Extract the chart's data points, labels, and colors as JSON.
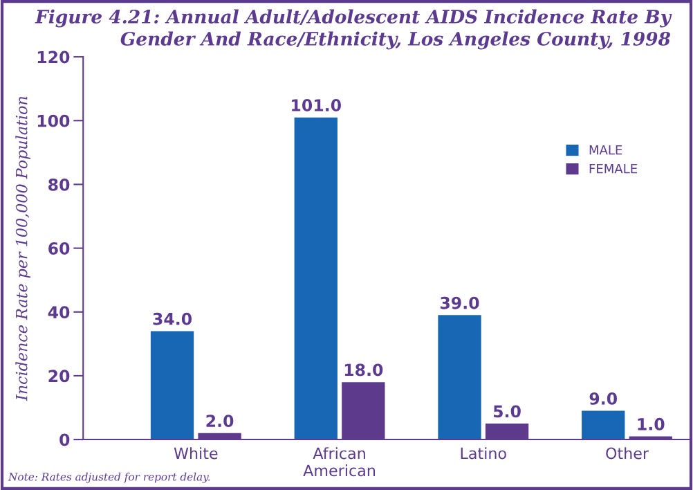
{
  "chart_data": {
    "type": "bar",
    "title": "Figure 4.21: Annual Adult/Adolescent AIDS Incidence Rate By\nGender And Race/Ethnicity, Los Angeles County, 1998",
    "ylabel": "Incidence Rate per 100,000 Population",
    "categories": [
      "White",
      "African\nAmerican",
      "Latino",
      "Other"
    ],
    "series": [
      {
        "name": "MALE",
        "color": "#1767b4",
        "values": [
          34.0,
          101.0,
          39.0,
          9.0
        ],
        "value_labels": [
          "34.0",
          "101.0",
          "39.0",
          "9.0"
        ]
      },
      {
        "name": "FEMALE",
        "color": "#5e3a8c",
        "values": [
          2.0,
          18.0,
          5.0,
          1.0
        ],
        "value_labels": [
          "2.0",
          "18.0",
          "5.0",
          "1.0"
        ]
      }
    ],
    "ylim": [
      0,
      120
    ],
    "yticks": [
      0,
      20,
      40,
      60,
      80,
      100,
      120
    ],
    "grid": false,
    "legend": "top right",
    "annotations": [
      "Note: Rates adjusted for report delay."
    ]
  }
}
